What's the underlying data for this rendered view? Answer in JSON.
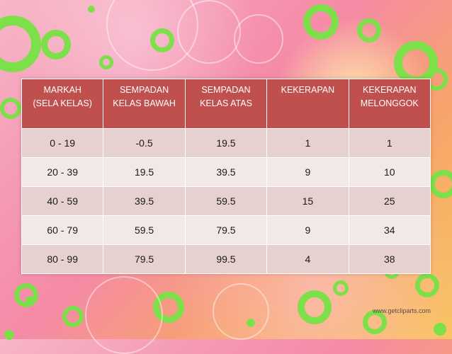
{
  "table": {
    "headers": [
      "MARKAH\n(SELA KELAS)",
      "SEMPADAN\nKELAS BAWAH",
      "SEMPADAN\nKELAS ATAS",
      "KEKERAPAN",
      "KEKERAPAN\nMELONGGOK"
    ],
    "rows": [
      [
        "0 - 19",
        "-0.5",
        "19.5",
        "1",
        "1"
      ],
      [
        "20 - 39",
        "19.5",
        "39.5",
        "9",
        "10"
      ],
      [
        "40 - 59",
        "39.5",
        "59.5",
        "15",
        "25"
      ],
      [
        "60 - 79",
        "59.5",
        "79.5",
        "9",
        "34"
      ],
      [
        "80 - 99",
        "79.5",
        "99.5",
        "4",
        "38"
      ]
    ]
  },
  "watermark": "www.getcliparts.com",
  "colors": {
    "header": "#c0504d",
    "row_odd": "#e7d0d0",
    "row_even": "#f3e8e8",
    "ring_green": "#7de04a"
  }
}
